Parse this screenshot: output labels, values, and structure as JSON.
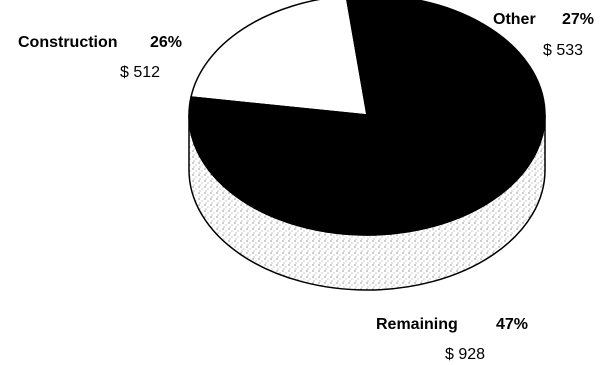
{
  "chart_data": {
    "type": "pie",
    "three_d": true,
    "title": "",
    "slices": [
      {
        "name": "Construction",
        "percent_label": "26%",
        "value_label": "$ 512",
        "value": 512,
        "fill": "#ffffff"
      },
      {
        "name": "Other",
        "percent_label": "27%",
        "value_label": "$ 533",
        "value": 533,
        "fill": "#000000"
      },
      {
        "name": "Remaining",
        "percent_label": "47%",
        "value_label": "$ 928",
        "value": 928,
        "fill": "stippled"
      }
    ],
    "legend": "none",
    "grid": false
  }
}
